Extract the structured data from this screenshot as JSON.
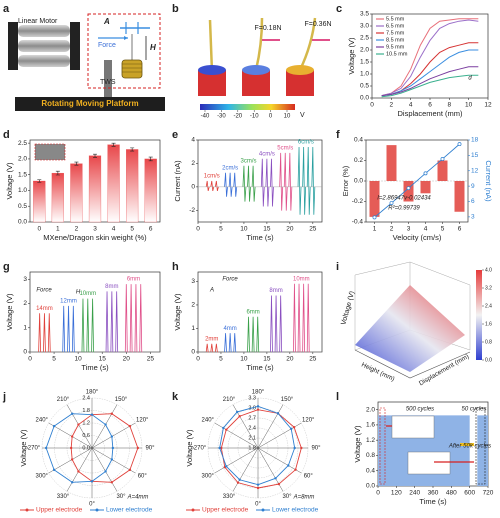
{
  "illustration_a": {
    "label": "a",
    "motor": "Linear Motor",
    "amplitude": "A",
    "force": "Force",
    "height": "H",
    "sensor": "TWS",
    "platform": "Rotating Moving Platform"
  },
  "illustration_b": {
    "label": "b",
    "forces": [
      "F=0.18N",
      "F=0.36N"
    ],
    "colorbar_ticks": [
      -40,
      -30,
      -20,
      -10,
      0,
      10
    ],
    "colorbar_unit": "V"
  },
  "chart_data": [
    {
      "type": "line",
      "label": "c",
      "xlabel": "Displacement (mm)",
      "ylabel": "Voltage (V)",
      "xlim": [
        0,
        12
      ],
      "xticks": [
        0,
        2,
        4,
        6,
        8,
        10,
        12
      ],
      "ylim": [
        0,
        3.5
      ],
      "yticks": [
        {
          "value": 0,
          "label": "0.0"
        },
        0.5,
        {
          "value": 1,
          "label": "1.0"
        },
        1.5,
        {
          "value": 2,
          "label": "2.0"
        },
        2.5,
        {
          "value": 3,
          "label": "3.0"
        },
        3.5
      ],
      "x": [
        1,
        2,
        3,
        4,
        5,
        6,
        7,
        8,
        9,
        10,
        11
      ],
      "series": [
        {
          "name": "5.5 mm",
          "color": "#e8707a",
          "values": [
            0.1,
            0.2,
            0.5,
            1.2,
            2.2,
            2.9,
            3.2,
            3.25,
            3.3,
            3.3,
            3.3
          ]
        },
        {
          "name": "6.5 mm",
          "color": "#9b6fc9",
          "values": [
            0.1,
            0.2,
            0.4,
            0.9,
            1.7,
            2.4,
            2.9,
            3.1,
            3.2,
            3.25,
            3.2
          ]
        },
        {
          "name": "7.5 mm",
          "color": "#d63333",
          "values": [
            0.1,
            0.15,
            0.3,
            0.6,
            1.0,
            1.5,
            1.9,
            2.1,
            2.2,
            2.3,
            2.3
          ]
        },
        {
          "name": "8.5 mm",
          "color": "#3a8ee0",
          "values": [
            0.1,
            0.15,
            0.3,
            0.5,
            0.8,
            1.1,
            1.4,
            1.7,
            1.9,
            2.0,
            2.0
          ]
        },
        {
          "name": "9.5 mm",
          "color": "#7b3fa0",
          "values": [
            0.1,
            0.15,
            0.25,
            0.4,
            0.6,
            0.8,
            0.95,
            1.1,
            1.2,
            1.3,
            1.3
          ]
        },
        {
          "name": "10.5 mm",
          "color": "#3bb08f",
          "values": [
            0.05,
            0.1,
            0.2,
            0.35,
            0.5,
            0.65,
            0.75,
            0.85,
            0.9,
            0.95,
            0.95
          ]
        }
      ],
      "annotations": [
        "d"
      ]
    },
    {
      "type": "bar",
      "label": "d",
      "xlabel": "MXene/Dragon skin weight (%)",
      "ylabel": "Voltage (V)",
      "categories": [
        "0",
        "1",
        "2",
        "3",
        "4",
        "5",
        "6"
      ],
      "values": [
        1.3,
        1.55,
        1.85,
        2.1,
        2.45,
        2.3,
        2.0
      ],
      "errors": [
        0.04,
        0.06,
        0.05,
        0.05,
        0.05,
        0.05,
        0.06
      ],
      "color": "#e8474a",
      "ylim": [
        0,
        2.6
      ],
      "yticks": [
        {
          "value": 0,
          "label": "0.0"
        },
        0.5,
        {
          "value": 1,
          "label": "1.0"
        },
        1.5,
        {
          "value": 2,
          "label": "2.0"
        },
        2.5
      ]
    },
    {
      "type": "spike",
      "label": "e",
      "xlabel": "Time (s)",
      "ylabel": "Current (nA)",
      "xlim": [
        0,
        27
      ],
      "xticks": [
        0,
        5,
        10,
        15,
        20,
        25
      ],
      "ylim": [
        -3,
        4
      ],
      "yticks": [
        -2,
        0,
        2,
        4
      ],
      "series": [
        {
          "name": "1cm/s",
          "color": "#e0403a",
          "x": [
            2,
            3,
            4
          ],
          "values": [
            0.5,
            0.5,
            0.5
          ]
        },
        {
          "name": "2cm/s",
          "color": "#3a6fd8",
          "x": [
            6,
            7,
            8
          ],
          "values": [
            1.2,
            1.2,
            1.2
          ]
        },
        {
          "name": "3cm/s",
          "color": "#3aa04a",
          "x": [
            10,
            11,
            12
          ],
          "values": [
            1.8,
            1.8,
            1.8
          ]
        },
        {
          "name": "4cm/s",
          "color": "#8a4fc0",
          "x": [
            14,
            15,
            16
          ],
          "values": [
            2.4,
            2.4,
            2.4
          ]
        },
        {
          "name": "5cm/s",
          "color": "#e0508a",
          "x": [
            18,
            19,
            20
          ],
          "values": [
            2.9,
            2.9,
            2.9
          ]
        },
        {
          "name": "6cm/s",
          "color": "#2aa0a0",
          "x": [
            22,
            23,
            24,
            25
          ],
          "values": [
            3.4,
            3.4,
            3.4,
            3.4
          ]
        }
      ]
    },
    {
      "type": "bar_line",
      "label": "f",
      "xlabel": "Velocity (cm/s)",
      "ylabel": "Error (%)",
      "y2label": "Current (nA)",
      "xlim": [
        0.5,
        6.5
      ],
      "xticks": [
        1,
        2,
        3,
        4,
        5,
        6
      ],
      "ylim": [
        -0.4,
        0.4
      ],
      "yticks": [
        -0.4,
        -0.2,
        {
          "value": 0,
          "label": "0.0"
        },
        0.2,
        0.4
      ],
      "y2lim": [
        2,
        18
      ],
      "y2ticks": [
        3,
        6,
        9,
        12,
        15,
        18
      ],
      "x": [
        1,
        2,
        3,
        4,
        5,
        6
      ],
      "series": [
        {
          "color": "#e0403a",
          "values": [
            -0.35,
            0.35,
            -0.2,
            -0.12,
            0.2,
            -0.3
          ]
        },
        {
          "color": "#2f7fd0",
          "axis": "y2",
          "values": [
            2.9,
            5.7,
            8.6,
            11.5,
            14.3,
            17.2
          ]
        }
      ],
      "annotations": [
        "I=2.86947v-0.02434",
        "R²=0.99739"
      ]
    },
    {
      "type": "spike",
      "label": "g",
      "xlabel": "Time (s)",
      "ylabel": "Voltage (V)",
      "xlim": [
        0,
        27
      ],
      "xticks": [
        0,
        5,
        10,
        15,
        20,
        25
      ],
      "ylim": [
        0,
        3.3
      ],
      "yticks": [
        0,
        1,
        2,
        3
      ],
      "series": [
        {
          "name": "14mm",
          "color": "#e0403a",
          "x": [
            2,
            3,
            4
          ],
          "values": [
            1.6,
            1.6,
            1.6
          ]
        },
        {
          "name": "12mm",
          "color": "#3a6fd8",
          "x": [
            7,
            8,
            9
          ],
          "values": [
            1.9,
            1.9,
            1.9
          ]
        },
        {
          "name": "10mm",
          "color": "#3aa04a",
          "x": [
            11,
            12,
            13
          ],
          "values": [
            2.2,
            2.2,
            2.2
          ]
        },
        {
          "name": "8mm",
          "color": "#8a4fc0",
          "x": [
            16,
            17,
            18
          ],
          "values": [
            2.5,
            2.5,
            2.5
          ]
        },
        {
          "name": "6mm",
          "color": "#e0508a",
          "x": [
            20,
            21,
            22,
            23
          ],
          "values": [
            2.8,
            2.8,
            2.8,
            2.8
          ]
        }
      ],
      "annotations": [
        "Force",
        "H"
      ]
    },
    {
      "type": "spike",
      "label": "h",
      "xlabel": "Time (s)",
      "ylabel": "Voltage (V)",
      "xlim": [
        0,
        27
      ],
      "xticks": [
        0,
        5,
        10,
        15,
        20,
        25
      ],
      "ylim": [
        0,
        3.4
      ],
      "yticks": [
        0,
        1,
        2,
        3
      ],
      "series": [
        {
          "name": "2mm",
          "color": "#e0403a",
          "x": [
            2,
            3,
            4
          ],
          "values": [
            0.35,
            0.35,
            0.35
          ]
        },
        {
          "name": "4mm",
          "color": "#3a6fd8",
          "x": [
            6,
            7,
            8
          ],
          "values": [
            0.8,
            0.8,
            0.8
          ]
        },
        {
          "name": "6mm",
          "color": "#3aa04a",
          "x": [
            11,
            12,
            13
          ],
          "values": [
            1.5,
            1.5,
            1.5
          ]
        },
        {
          "name": "8mm",
          "color": "#8a4fc0",
          "x": [
            16,
            17,
            18
          ],
          "values": [
            2.4,
            2.4,
            2.4
          ]
        },
        {
          "name": "10mm",
          "color": "#e0508a",
          "x": [
            21,
            22,
            23,
            24
          ],
          "values": [
            2.9,
            2.9,
            2.9,
            2.9
          ]
        }
      ],
      "annotations": [
        "A",
        "Force"
      ]
    },
    {
      "type": "surface",
      "label": "i",
      "zlabel": "Voltage (V)",
      "xlabel": "Height (mm)",
      "ylabel": "Displacement (mm)",
      "colorbar_ticks": [
        {
          "value": 0,
          "label": "0.0"
        },
        0.8,
        1.6,
        2.4,
        3.2,
        {
          "value": 4,
          "label": "4.0"
        }
      ]
    },
    {
      "type": "polar",
      "label": "j",
      "rlabel": "Voltage (V)",
      "rlim": [
        0,
        2.4
      ],
      "rticks": [
        {
          "value": 0,
          "label": "0.0"
        },
        0.6,
        1.2,
        1.8,
        2.4
      ],
      "thetaticks": [
        {
          "value": 0,
          "label": "0°"
        },
        {
          "value": 30,
          "label": "30°"
        },
        {
          "value": 60,
          "label": "60°"
        },
        {
          "value": 90,
          "label": "90°"
        },
        {
          "value": 120,
          "label": "120°"
        },
        {
          "value": 150,
          "label": "150°"
        },
        {
          "value": 180,
          "label": "180°"
        },
        {
          "value": 210,
          "label": "210°"
        },
        {
          "value": 240,
          "label": "240°"
        },
        {
          "value": 270,
          "label": "270°"
        },
        {
          "value": 300,
          "label": "300°"
        },
        {
          "value": 330,
          "label": "330°"
        }
      ],
      "series": [
        {
          "name": "Upper electrode",
          "color": "#e0403a",
          "values": [
            1.6,
            1.9,
            2.1,
            2.2,
            2.1,
            1.9,
            1.6,
            1.3,
            1.1,
            1.0,
            1.1,
            1.3
          ]
        },
        {
          "name": "Lower electrode",
          "color": "#2f7fd0",
          "values": [
            1.6,
            1.3,
            1.1,
            1.0,
            1.1,
            1.3,
            1.6,
            1.9,
            2.1,
            2.2,
            2.1,
            1.9
          ]
        }
      ],
      "annotations": [
        "A=4mm"
      ]
    },
    {
      "type": "polar",
      "label": "k",
      "rlabel": "Voltage (V)",
      "rlim": [
        1.8,
        3.3
      ],
      "rticks": [
        1.8,
        2.1,
        2.4,
        2.7,
        {
          "value": 3,
          "label": "3.0"
        },
        3.3
      ],
      "thetaticks": [
        {
          "value": 0,
          "label": "0°"
        },
        {
          "value": 30,
          "label": "30°"
        },
        {
          "value": 60,
          "label": "60°"
        },
        {
          "value": 90,
          "label": "90°"
        },
        {
          "value": 120,
          "label": "120°"
        },
        {
          "value": 150,
          "label": "150°"
        },
        {
          "value": 180,
          "label": "180°"
        },
        {
          "value": 210,
          "label": "210°"
        },
        {
          "value": 240,
          "label": "240°"
        },
        {
          "value": 270,
          "label": "270°"
        },
        {
          "value": 300,
          "label": "300°"
        },
        {
          "value": 330,
          "label": "330°"
        }
      ],
      "series": [
        {
          "name": "Upper electrode",
          "color": "#e0403a",
          "values": [
            3.0,
            3.05,
            3.1,
            3.1,
            3.05,
            3.0,
            2.95,
            2.9,
            2.9,
            2.9,
            2.95,
            3.0
          ]
        },
        {
          "name": "Lower electrode",
          "color": "#2f7fd0",
          "values": [
            2.9,
            2.85,
            2.85,
            2.9,
            2.95,
            3.0,
            3.05,
            3.05,
            3.0,
            2.95,
            2.9,
            2.9
          ]
        }
      ],
      "annotations": [
        "A=8mm"
      ]
    },
    {
      "type": "band",
      "label": "l",
      "xlabel": "Time (s)",
      "ylabel": "Voltage (V)",
      "xlim": [
        0,
        720
      ],
      "xticks": [
        0,
        120,
        240,
        360,
        480,
        600,
        720
      ],
      "ylim": [
        0,
        2.2
      ],
      "yticks": [
        {
          "value": 0,
          "label": "0.0"
        },
        0.4,
        0.8,
        1.2,
        1.6,
        {
          "value": 2,
          "label": "2.0"
        }
      ],
      "color": "#8fb3e6",
      "segments": [
        {
          "x": [
            0,
            600
          ],
          "value": 1.85
        },
        {
          "x": [
            650,
            720
          ],
          "value": 1.85
        }
      ],
      "annotations": [
        "500 cycles",
        "50 cycles",
        "After 50k cycles"
      ]
    }
  ]
}
